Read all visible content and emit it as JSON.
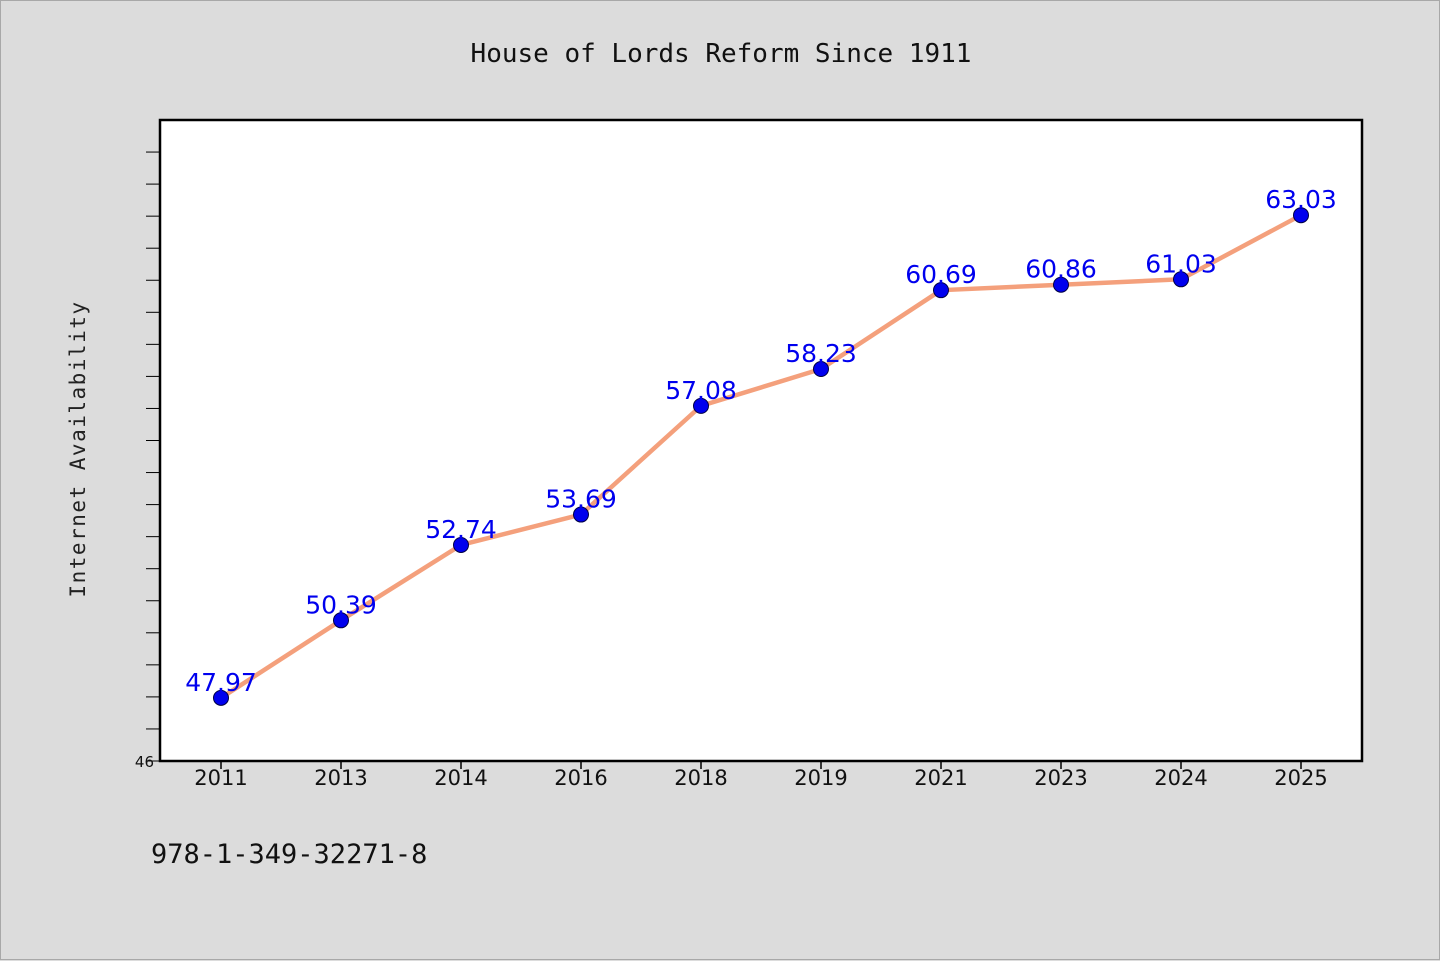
{
  "chart_data": {
    "type": "line",
    "title": "House of Lords Reform Since 1911",
    "xlabel": "",
    "ylabel": "Internet Availability",
    "categories": [
      "2011",
      "2013",
      "2014",
      "2016",
      "2018",
      "2019",
      "2021",
      "2023",
      "2024",
      "2025"
    ],
    "series": [
      {
        "values": [
          47.97,
          50.39,
          52.74,
          53.69,
          57.08,
          58.23,
          60.69,
          60.86,
          61.03,
          63.03
        ]
      }
    ],
    "data_labels": [
      "47.97",
      "50.39",
      "52.74",
      "53.69",
      "57.08",
      "58.23",
      "60.69",
      "60.86",
      "61.03",
      "63.03"
    ],
    "ylim": [
      46,
      66
    ],
    "y_tick_labels": [
      "46"
    ],
    "grid": false,
    "legend": "none"
  },
  "footer": {
    "code": "978-1-349-32271-8"
  },
  "colors": {
    "background": "#dcdcdc",
    "plot_background": "#ffffff",
    "line": "#f4a07c",
    "marker": "#0000ee",
    "data_label": "#0000ee"
  }
}
